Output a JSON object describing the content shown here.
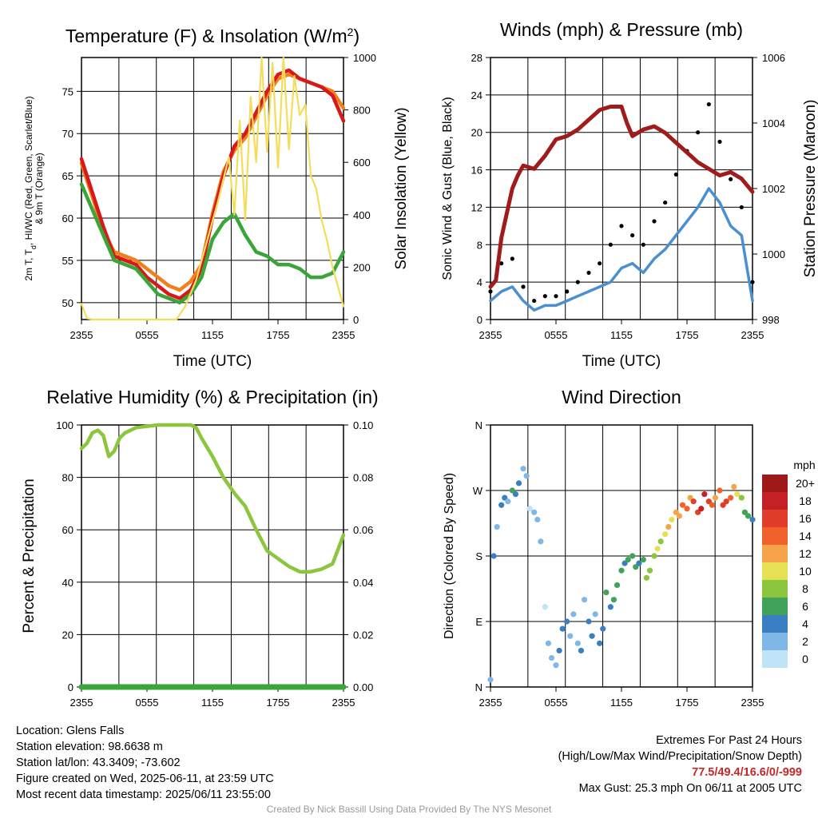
{
  "chart_data": [
    {
      "type": "line",
      "title": "Temperature (F) & Insolation (W/m",
      "title_sup": "2",
      "title_end": ")",
      "xlabel": "Time (UTC)",
      "ylabel_lines": [
        "2m T, T",
        "d",
        ", HI/WC (Red, Green, Scarlet/Blue)",
        "& 9m T (Orange)"
      ],
      "y2label": "Solar Insolation (Yellow)",
      "x_tick_labels": [
        "2355",
        "0555",
        "1155",
        "1755",
        "2355"
      ],
      "y_ticks": [
        "50",
        "55",
        "60",
        "65",
        "70",
        "75"
      ],
      "ylim": [
        48,
        79
      ],
      "y2_ticks": [
        "0",
        "200",
        "400",
        "600",
        "800",
        "1000"
      ],
      "y2lim": [
        0,
        1000
      ],
      "x_hours": [
        0,
        24
      ],
      "series": [
        {
          "color": "#f07f1c",
          "axis": "left",
          "x": [
            0,
            1,
            2,
            3,
            4,
            5,
            6,
            7,
            8,
            9,
            10,
            11,
            12,
            13,
            14,
            15,
            16,
            17,
            18,
            19,
            20,
            21,
            22,
            23,
            24
          ],
          "values": [
            66.5,
            62.5,
            58.5,
            56.0,
            55.5,
            55.0,
            54.0,
            53.0,
            52.0,
            51.5,
            52.5,
            54.5,
            60.5,
            65.5,
            68.0,
            69.5,
            72.0,
            74.5,
            76.5,
            77.0,
            76.5,
            76.0,
            75.5,
            75.0,
            73.0
          ]
        },
        {
          "color": "#d7191c",
          "axis": "left",
          "x": [
            0,
            1,
            2,
            3,
            4,
            5,
            6,
            7,
            8,
            9,
            10,
            11,
            12,
            13,
            14,
            15,
            16,
            17,
            18,
            19,
            20,
            21,
            22,
            23,
            24
          ],
          "values": [
            67.0,
            63.0,
            59.0,
            55.5,
            55.0,
            54.5,
            53.0,
            52.0,
            51.0,
            50.5,
            51.5,
            54.0,
            60.0,
            65.0,
            68.5,
            70.0,
            72.5,
            75.0,
            77.0,
            77.5,
            76.5,
            76.0,
            75.5,
            74.5,
            71.5
          ]
        },
        {
          "color": "#3aa63a",
          "axis": "left",
          "x": [
            0,
            1,
            2,
            3,
            4,
            5,
            6,
            7,
            8,
            9,
            10,
            11,
            12,
            13,
            14,
            15,
            16,
            17,
            18,
            19,
            20,
            21,
            22,
            23,
            24
          ],
          "values": [
            64.0,
            61.0,
            58.0,
            55.0,
            54.5,
            54.0,
            52.5,
            51.0,
            50.5,
            50.0,
            51.0,
            53.0,
            57.5,
            59.5,
            60.5,
            58.0,
            56.0,
            55.5,
            54.5,
            54.5,
            54.0,
            53.0,
            53.0,
            53.5,
            56.0
          ]
        },
        {
          "color": "#f4dd5a",
          "axis": "right",
          "x": [
            0,
            0.5,
            1,
            8.7,
            9.5,
            10.5,
            11.5,
            12.5,
            13.5,
            14,
            14.5,
            15,
            15.5,
            16,
            16.5,
            17,
            17.5,
            18,
            18.5,
            19,
            19.5,
            20,
            20.5,
            21,
            21.5,
            22,
            22.5,
            23,
            24
          ],
          "values": [
            60,
            5,
            0,
            0,
            50,
            150,
            300,
            450,
            620,
            400,
            760,
            380,
            850,
            600,
            1000,
            640,
            980,
            580,
            1000,
            650,
            930,
            780,
            820,
            550,
            500,
            380,
            300,
            200,
            50
          ]
        }
      ]
    },
    {
      "type": "line",
      "title": "Winds (mph) & Pressure (mb)",
      "xlabel": "Time (UTC)",
      "ylabel": "Sonic Wind & Gust (Blue, Black)",
      "y2label": "Station Pressure (Maroon)",
      "x_tick_labels": [
        "2355",
        "0555",
        "1155",
        "1755",
        "2355"
      ],
      "y_ticks": [
        "0",
        "4",
        "8",
        "12",
        "16",
        "20",
        "24",
        "28"
      ],
      "ylim": [
        0,
        28
      ],
      "y2_ticks": [
        "998",
        "1000",
        "1002",
        "1004",
        "1006"
      ],
      "y2lim": [
        998,
        1006
      ],
      "series": [
        {
          "name": "Pressure",
          "color": "#a01c1c",
          "axis": "right",
          "x": [
            0,
            0.5,
            1,
            2,
            2.5,
            3,
            4,
            5,
            6,
            7,
            8,
            9,
            10,
            11,
            12,
            12.5,
            13,
            14,
            15,
            16,
            17,
            18,
            19,
            20,
            21,
            22,
            23,
            24
          ],
          "values": [
            999.0,
            999.2,
            1000.5,
            1002.0,
            1002.4,
            1002.7,
            1002.6,
            1003.0,
            1003.5,
            1003.6,
            1003.8,
            1004.1,
            1004.4,
            1004.5,
            1004.5,
            1004.0,
            1003.6,
            1003.8,
            1003.9,
            1003.7,
            1003.4,
            1003.1,
            1002.8,
            1002.6,
            1002.4,
            1002.5,
            1002.3,
            1001.9
          ]
        },
        {
          "name": "Sonic Wind",
          "color": "#4a90d0",
          "axis": "left",
          "x": [
            0,
            1,
            2,
            3,
            4,
            5,
            6,
            7,
            8,
            9,
            10,
            11,
            12,
            13,
            14,
            15,
            16,
            17,
            18,
            19,
            20,
            21,
            22,
            23,
            24
          ],
          "values": [
            2.0,
            3.0,
            3.5,
            2.0,
            1.0,
            1.5,
            1.5,
            2.0,
            2.5,
            3.0,
            3.5,
            4.0,
            5.5,
            6.0,
            5.0,
            6.5,
            7.5,
            9.0,
            10.5,
            12.0,
            14.0,
            12.5,
            10.0,
            9.0,
            2.0
          ]
        },
        {
          "name": "Gust",
          "color": "#000000",
          "axis": "left",
          "x": [
            0,
            1,
            2,
            3,
            4,
            5,
            6,
            7,
            8,
            9,
            10,
            11,
            12,
            13,
            14,
            15,
            16,
            17,
            18,
            19,
            20,
            21,
            22,
            23,
            24
          ],
          "values": [
            3.0,
            6.0,
            6.5,
            3.5,
            2.0,
            2.5,
            2.5,
            3.0,
            4.0,
            5.0,
            6.0,
            8.0,
            10.0,
            9.0,
            8.0,
            10.5,
            12.5,
            15.5,
            18.0,
            20.0,
            23.0,
            19.0,
            15.0,
            12.0,
            4.0
          ]
        }
      ]
    },
    {
      "type": "line",
      "title": "Relative Humidity (%) & Precipitation (in)",
      "ylabel": "Percent & Precipitation",
      "x_tick_labels": [
        "2355",
        "0555",
        "1155",
        "1755",
        "2355"
      ],
      "y_ticks": [
        "0",
        "20",
        "40",
        "60",
        "80",
        "100"
      ],
      "ylim": [
        0,
        100
      ],
      "y2_ticks": [
        "0.00",
        "0.02",
        "0.04",
        "0.06",
        "0.08",
        "0.10"
      ],
      "y2lim": [
        0,
        0.1
      ],
      "series": [
        {
          "name": "RH",
          "color": "#8cc63f",
          "axis": "left",
          "x": [
            0,
            0.5,
            1,
            1.5,
            2,
            2.5,
            3,
            3.5,
            4,
            5,
            6,
            7,
            8,
            9,
            10,
            10.5,
            11,
            12,
            13,
            14,
            15,
            16,
            17,
            18,
            19,
            20,
            21,
            22,
            23,
            24
          ],
          "values": [
            91,
            93,
            97,
            98,
            96,
            88,
            90,
            95,
            97,
            99,
            99.5,
            100,
            100,
            100,
            100,
            99,
            95,
            88,
            80,
            74,
            69,
            60,
            52,
            49,
            46,
            44,
            44,
            45,
            47,
            58
          ]
        },
        {
          "name": "Precipitation",
          "color": "#3aa63a",
          "axis": "right",
          "x": [
            0,
            24
          ],
          "values": [
            0,
            0
          ]
        }
      ]
    },
    {
      "type": "scatter",
      "title": "Wind Direction",
      "ylabel": "Direction (Colored By Speed)",
      "x_tick_labels": [
        "2355",
        "0555",
        "1155",
        "1755",
        "2355"
      ],
      "y_ticks": [
        "N",
        "E",
        "S",
        "W",
        "N"
      ],
      "ylim": [
        0,
        360
      ],
      "colorbar": {
        "title": "mph",
        "labels": [
          "20+",
          "18",
          "16",
          "14",
          "12",
          "10",
          "8",
          "6",
          "4",
          "2",
          "0"
        ],
        "colors": [
          "#9e1a1a",
          "#c42127",
          "#e03e2a",
          "#f1622a",
          "#f7a34a",
          "#e6e055",
          "#8cc63f",
          "#41a25a",
          "#3a7fc1",
          "#7fb8e6",
          "#bfe3f7"
        ]
      },
      "points_x": [
        0,
        0.3,
        0.6,
        1,
        1.3,
        1.6,
        2,
        2.3,
        2.6,
        3,
        3.3,
        3.6,
        4,
        4.3,
        4.6,
        5,
        5.3,
        5.6,
        6,
        6.3,
        6.6,
        7,
        7.3,
        7.6,
        8,
        8.3,
        8.6,
        9,
        9.3,
        9.6,
        10,
        10.3,
        10.6,
        11,
        11.3,
        11.6,
        12,
        12.3,
        12.6,
        13,
        13.3,
        13.6,
        14,
        14.3,
        14.6,
        15,
        15.3,
        15.6,
        16,
        16.3,
        16.6,
        17,
        17.3,
        17.6,
        18,
        18.3,
        18.6,
        19,
        19.3,
        19.6,
        20,
        20.3,
        20.6,
        21,
        21.3,
        21.6,
        22,
        22.3,
        22.6,
        23,
        23.3,
        23.6,
        24
      ],
      "points_dir": [
        10,
        180,
        220,
        250,
        260,
        255,
        270,
        265,
        280,
        300,
        290,
        245,
        240,
        230,
        200,
        110,
        60,
        40,
        30,
        50,
        80,
        90,
        70,
        100,
        60,
        50,
        120,
        90,
        70,
        100,
        60,
        80,
        130,
        110,
        120,
        140,
        160,
        170,
        175,
        180,
        165,
        170,
        175,
        150,
        160,
        180,
        190,
        200,
        210,
        220,
        230,
        240,
        235,
        250,
        245,
        260,
        255,
        240,
        245,
        265,
        255,
        250,
        260,
        270,
        250,
        255,
        260,
        275,
        265,
        260,
        240,
        235,
        230,
        200
      ],
      "points_speed": [
        2,
        3,
        2,
        4,
        3,
        2,
        5,
        4,
        3,
        2,
        1,
        0,
        1,
        2,
        1,
        0,
        1,
        2,
        2,
        3,
        4,
        3,
        2,
        1,
        2,
        3,
        2,
        4,
        3,
        2,
        3,
        4,
        5,
        4,
        5,
        6,
        5,
        4,
        5,
        6,
        5,
        4,
        6,
        7,
        8,
        7,
        9,
        8,
        10,
        11,
        10,
        12,
        11,
        13,
        14,
        12,
        15,
        16,
        17,
        18,
        16,
        14,
        12,
        13,
        15,
        16,
        14,
        12,
        10,
        8,
        6,
        5,
        4,
        3
      ]
    }
  ],
  "info_left": [
    "Location: Glens Falls",
    "Station elevation: 98.6638 m",
    "Station lat/lon: 43.3409; -73.602",
    "Figure created on Wed, 2025-06-11, at 23:59 UTC",
    "Most recent data timestamp: 2025/06/11 23:55:00"
  ],
  "extremes": {
    "title": "Extremes For Past 24 Hours",
    "subtitle": "(High/Low/Max Wind/Precipitation/Snow Depth)",
    "values": "77.5/49.4/16.6/0/-999",
    "max_gust": "Max Gust: 25.3 mph On 06/11 at 2005 UTC"
  },
  "credit": "Created By Nick Bassill Using Data Provided By The NYS Mesonet"
}
